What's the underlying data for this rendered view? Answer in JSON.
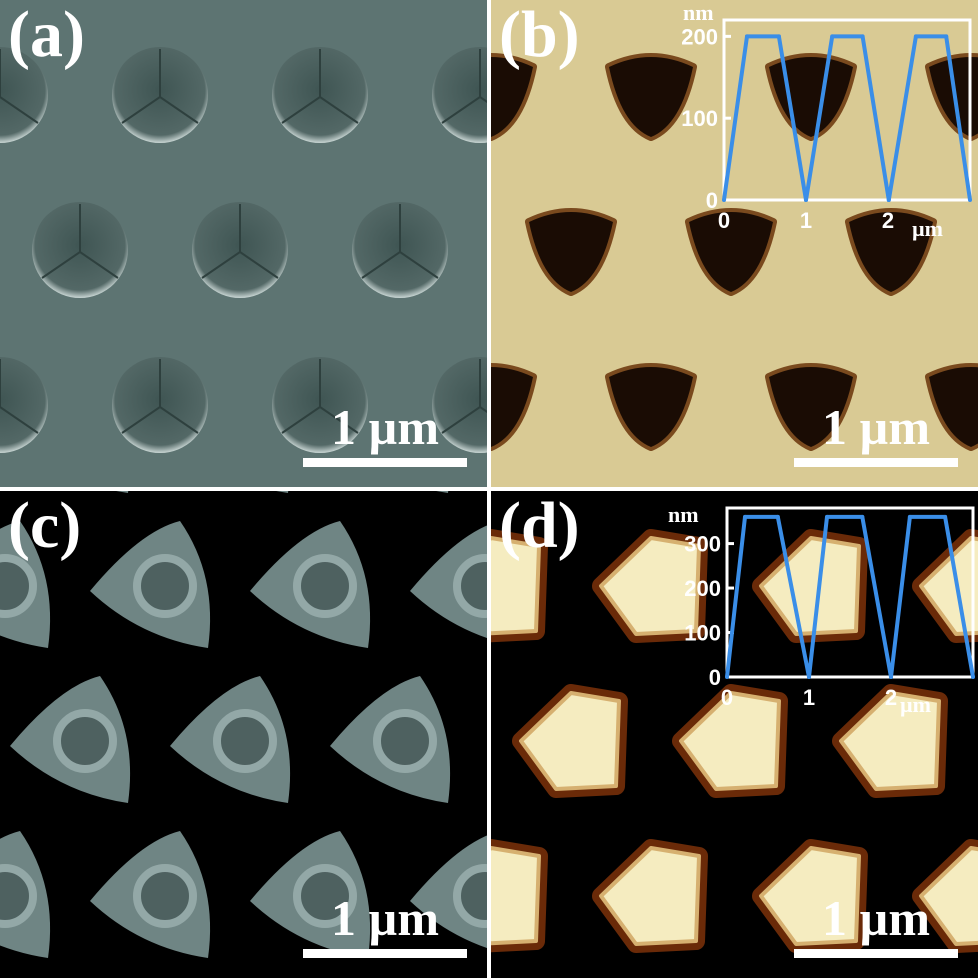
{
  "panels": [
    {
      "label": "(a)",
      "scale_bar": "1 µm"
    },
    {
      "label": "(b)",
      "scale_bar": "1 µm"
    },
    {
      "label": "(c)",
      "scale_bar": "1 µm"
    },
    {
      "label": "(d)",
      "scale_bar": "1 µm"
    }
  ],
  "colors": {
    "profile_line": "#3a8ee8",
    "sem_background": "#5d7472",
    "afm_b_background": "#d9ca94",
    "afm_b_hole": "#1a0c04",
    "afm_d_feature": "#f5ecc0"
  },
  "chart_data": [
    {
      "type": "line",
      "panel": "(b)",
      "ylabel": "nm",
      "xlabel": "µm",
      "xlim": [
        0,
        3.0
      ],
      "ylim": [
        0,
        220
      ],
      "xticks": [
        "0",
        "1",
        "2"
      ],
      "yticks": [
        "0",
        "100",
        "200"
      ],
      "x": [
        0,
        0.28,
        0.67,
        1.0,
        1.32,
        1.69,
        2.01,
        2.34,
        2.71,
        3.0
      ],
      "y": [
        0,
        200,
        200,
        0,
        200,
        200,
        0,
        200,
        200,
        0
      ]
    },
    {
      "type": "line",
      "panel": "(d)",
      "ylabel": "nm",
      "xlabel": "µm",
      "xlim": [
        0,
        3.0
      ],
      "ylim": [
        0,
        380
      ],
      "xticks": [
        "0",
        "1",
        "2"
      ],
      "yticks": [
        "0",
        "100",
        "200",
        "300"
      ],
      "x": [
        0,
        0.22,
        0.62,
        1.0,
        1.22,
        1.65,
        2.0,
        2.23,
        2.66,
        3.0
      ],
      "y": [
        0,
        360,
        360,
        0,
        360,
        360,
        0,
        360,
        360,
        0
      ]
    }
  ]
}
